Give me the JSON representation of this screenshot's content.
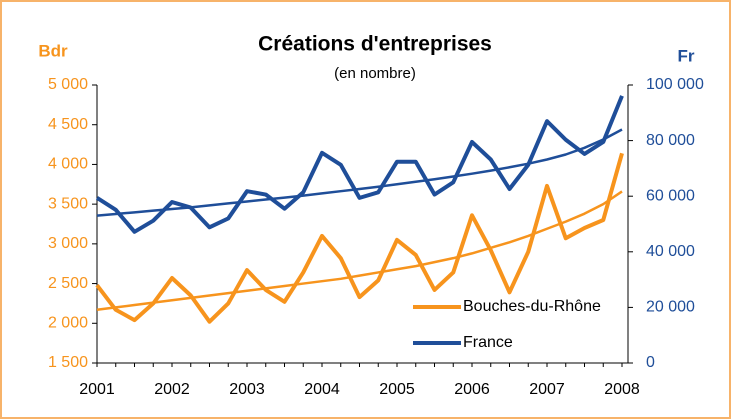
{
  "chart_data": {
    "type": "line",
    "title": "Créations d'entreprises",
    "subtitle": "(en nombre)",
    "y_label": "Bdr",
    "y2_label": "Fr",
    "categories": [
      "2001",
      null,
      null,
      null,
      "2002",
      null,
      null,
      null,
      "2003",
      null,
      null,
      null,
      "2004",
      null,
      null,
      null,
      "2005",
      null,
      null,
      null,
      "2006",
      null,
      null,
      null,
      "2007",
      null,
      null,
      null,
      "2008"
    ],
    "series": [
      {
        "name": "Bouches-du-Rhône",
        "color": "#f7941d",
        "values": [
          2480,
          2170,
          2040,
          2250,
          2570,
          2350,
          2020,
          2250,
          2670,
          2420,
          2270,
          2640,
          3100,
          2820,
          2330,
          2540,
          3050,
          2860,
          2420,
          2640,
          3360,
          2920,
          2390,
          2900,
          3730,
          3070,
          3200,
          3300,
          4140
        ]
      },
      {
        "name": "France",
        "color": "#1f4e99",
        "axis": "y2",
        "values": [
          59400,
          55100,
          47200,
          51200,
          57900,
          55900,
          48800,
          52000,
          61800,
          60600,
          55500,
          61400,
          75600,
          71300,
          59400,
          61400,
          72400,
          72400,
          60600,
          65000,
          79500,
          73200,
          62600,
          71300,
          87000,
          80300,
          75200,
          79500,
          96100
        ]
      }
    ],
    "trendlines": [
      {
        "color": "#f7941d",
        "values": [
          2170,
          2200,
          2230,
          2260,
          2290,
          2320,
          2350,
          2380,
          2410,
          2440,
          2470,
          2500,
          2530,
          2560,
          2600,
          2640,
          2680,
          2720,
          2770,
          2820,
          2880,
          2950,
          3020,
          3100,
          3190,
          3280,
          3380,
          3500,
          3660
        ]
      },
      {
        "color": "#1f4e99",
        "axis": "y2",
        "values": [
          53000,
          53600,
          54200,
          54800,
          55400,
          56000,
          56700,
          57400,
          58100,
          58800,
          59500,
          60200,
          61000,
          61800,
          62600,
          63400,
          64300,
          65200,
          66100,
          67100,
          68100,
          69200,
          70400,
          71700,
          73200,
          75000,
          77400,
          80400,
          84000
        ]
      }
    ],
    "ylim": [
      1500,
      5000
    ],
    "yticks": [
      {
        "value": 1500,
        "label": "1 500"
      },
      {
        "value": 2000,
        "label": "2 000"
      },
      {
        "value": 2500,
        "label": "2 500"
      },
      {
        "value": 3000,
        "label": "3 000"
      },
      {
        "value": 3500,
        "label": "3 500"
      },
      {
        "value": 4000,
        "label": "4 000"
      },
      {
        "value": 4500,
        "label": "4 500"
      },
      {
        "value": 5000,
        "label": "5 000"
      }
    ],
    "y2lim": [
      0,
      100000
    ],
    "y2ticks": [
      0,
      {
        "value": 20000,
        "label": "20 000"
      },
      {
        "value": 40000,
        "label": "40 000"
      },
      {
        "value": 60000,
        "label": "60 000"
      },
      {
        "value": 80000,
        "label": "80 000"
      },
      {
        "value": 100000,
        "label": "100 000"
      }
    ],
    "y_color": "#f7941d",
    "y2_color": "#1f4e99",
    "legend": "lower right"
  }
}
